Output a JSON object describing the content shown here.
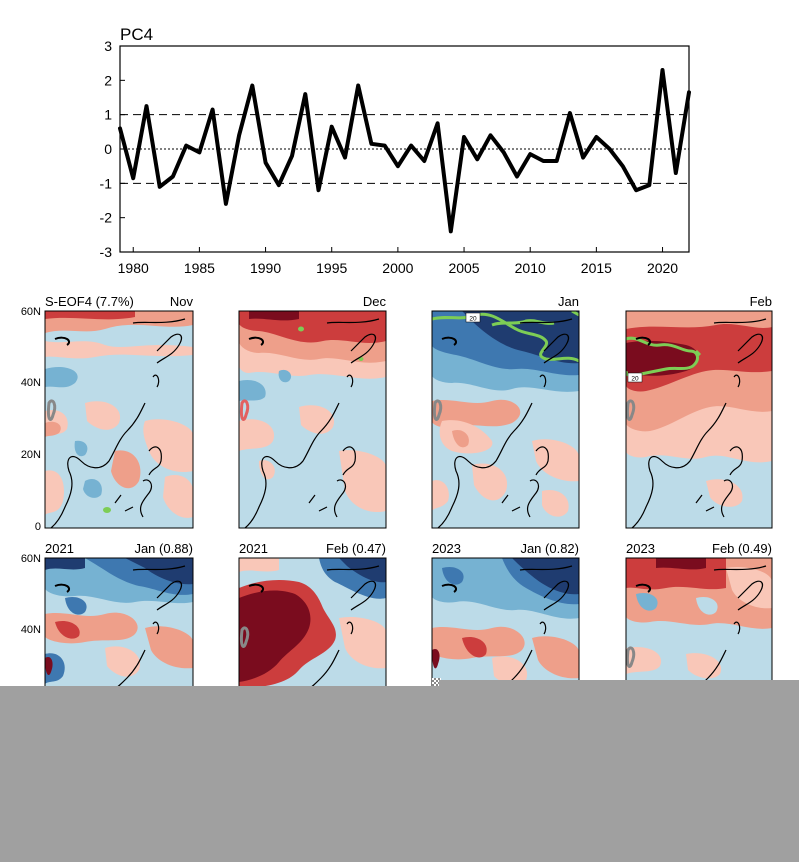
{
  "chart_data": [
    {
      "type": "line",
      "title": "PC4",
      "xlabel": "",
      "ylabel": "",
      "xlim": [
        1979,
        2022
      ],
      "ylim": [
        -3,
        3
      ],
      "x_ticks": [
        "1980",
        "1985",
        "1990",
        "1995",
        "2000",
        "2005",
        "2010",
        "2015",
        "2020"
      ],
      "y_ticks": [
        "3",
        "2",
        "1",
        "0",
        "-1",
        "-2",
        "-3"
      ],
      "reference_lines": [
        {
          "y": 1,
          "style": "dashed"
        },
        {
          "y": 0,
          "style": "dotted"
        },
        {
          "y": -1,
          "style": "dashed"
        }
      ],
      "grid": false,
      "series": [
        {
          "x": [
            1979,
            1980,
            1981,
            1982,
            1983,
            1984,
            1985,
            1986,
            1987,
            1988,
            1989,
            1990,
            1991,
            1992,
            1993,
            1994,
            1995,
            1996,
            1997,
            1998,
            1999,
            2000,
            2001,
            2002,
            2003,
            2004,
            2005,
            2006,
            2007,
            2008,
            2009,
            2010,
            2011,
            2012,
            2013,
            2014,
            2015,
            2016,
            2017,
            2018,
            2019,
            2020,
            2021,
            2022
          ],
          "values": [
            0.6,
            -0.85,
            1.25,
            -1.1,
            -0.8,
            0.1,
            -0.1,
            1.15,
            -1.6,
            0.4,
            1.85,
            -0.4,
            -1.05,
            -0.2,
            1.6,
            -1.2,
            0.65,
            -0.25,
            1.85,
            0.15,
            0.1,
            -0.5,
            0.1,
            -0.35,
            0.75,
            -2.4,
            0.35,
            -0.3,
            0.4,
            -0.1,
            -0.8,
            -0.15,
            -0.35,
            -0.35,
            1.05,
            -0.25,
            0.35,
            0.0,
            -0.5,
            -1.2,
            -1.05,
            2.3,
            -0.7,
            1.65
          ],
          "color": "#000000"
        }
      ]
    },
    {
      "type": "heatmap",
      "panels": [
        {
          "left_label": "S-EOF4 (7.7%)",
          "right_label": "Nov",
          "contour_label": ""
        },
        {
          "left_label": "",
          "right_label": "Dec",
          "contour_label": ""
        },
        {
          "left_label": "",
          "right_label": "Jan",
          "contour_label": "20"
        },
        {
          "left_label": "",
          "right_label": "Feb",
          "contour_label": "20"
        },
        {
          "left_label": "2021",
          "right_label": "Jan (0.88)"
        },
        {
          "left_label": "2021",
          "right_label": "Feb (0.47)"
        },
        {
          "left_label": "2023",
          "right_label": "Jan (0.82)"
        },
        {
          "left_label": "2023",
          "right_label": "Feb (0.49)"
        }
      ],
      "lat_ticks": [
        "60N",
        "40N",
        "20N",
        "0"
      ],
      "colors": {
        "dark_red": "#7a0c1e",
        "red": "#cc3d3d",
        "salmon": "#ee9f8a",
        "light_red": "#f9c7b8",
        "light_blue": "#bcdbe8",
        "blue": "#76b2d2",
        "mid_blue": "#3e78b0",
        "navy": "#1f3c70",
        "contour_green": "#7dcd55"
      }
    }
  ]
}
